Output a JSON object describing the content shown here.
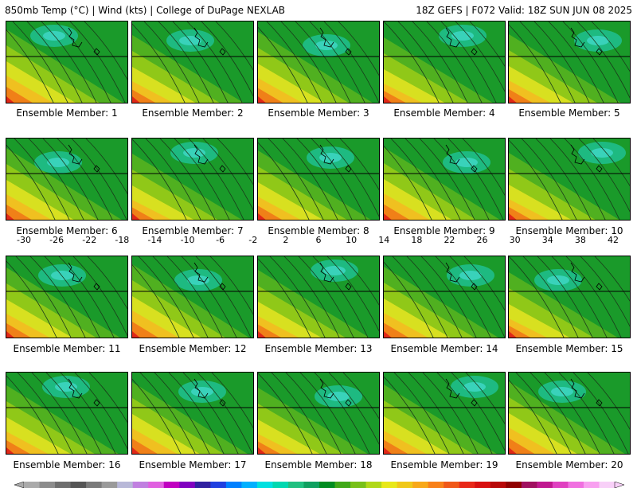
{
  "header": {
    "left": "850mb Temp (°C) | Wind (kts) | College of DuPage NEXLAB",
    "right": "18Z GEFS | F072 Valid: 18Z SUN JUN 08 2025"
  },
  "members": [
    {
      "label": "Ensemble Member: 1"
    },
    {
      "label": "Ensemble Member: 2"
    },
    {
      "label": "Ensemble Member: 3"
    },
    {
      "label": "Ensemble Member: 4"
    },
    {
      "label": "Ensemble Member: 5"
    },
    {
      "label": "Ensemble Member: 6"
    },
    {
      "label": "Ensemble Member: 7"
    },
    {
      "label": "Ensemble Member: 8"
    },
    {
      "label": "Ensemble Member: 9"
    },
    {
      "label": "Ensemble Member: 10"
    },
    {
      "label": "Ensemble Member: 11"
    },
    {
      "label": "Ensemble Member: 12"
    },
    {
      "label": "Ensemble Member: 13"
    },
    {
      "label": "Ensemble Member: 14"
    },
    {
      "label": "Ensemble Member: 15"
    },
    {
      "label": "Ensemble Member: 16"
    },
    {
      "label": "Ensemble Member: 17"
    },
    {
      "label": "Ensemble Member: 18"
    },
    {
      "label": "Ensemble Member: 19"
    },
    {
      "label": "Ensemble Member: 20"
    }
  ],
  "colorbar": {
    "ticks": [
      "-30",
      "-26",
      "-22",
      "-18",
      "-14",
      "-10",
      "-6",
      "-2",
      "2",
      "6",
      "10",
      "14",
      "18",
      "22",
      "26",
      "30",
      "34",
      "38",
      "42"
    ],
    "colors": [
      "#aaaaaa",
      "#8c8c8c",
      "#6e6e6e",
      "#555555",
      "#7a7a7a",
      "#9a9a9a",
      "#b8b8d8",
      "#c080e0",
      "#e060e0",
      "#c000c0",
      "#8000c0",
      "#3020a0",
      "#2040e0",
      "#0080ff",
      "#00b0ff",
      "#00e0e0",
      "#00d8b0",
      "#20c080",
      "#10a060",
      "#008c20",
      "#40a818",
      "#78c018",
      "#b0d818",
      "#e8e818",
      "#f0c818",
      "#f8a818",
      "#f88018",
      "#f05818",
      "#e82818",
      "#d81010",
      "#b80808",
      "#900000",
      "#a01060",
      "#c01890",
      "#e040c0",
      "#f070e0",
      "#f8a0f0",
      "#f8d0f8"
    ]
  }
}
